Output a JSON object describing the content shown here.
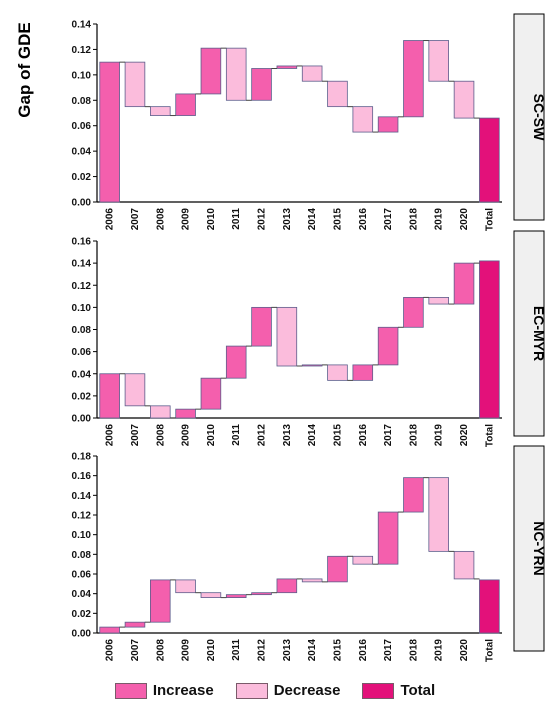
{
  "ylabel": "Gap of GDE",
  "colors": {
    "increase": "#f45fad",
    "decrease": "#fbbcdc",
    "total": "#e3117a",
    "edge": "#5d5e8c",
    "connector": "#444444",
    "strip_bg": "#f0f0f0"
  },
  "legend": [
    {
      "key": "increase",
      "label": "Increase"
    },
    {
      "key": "decrease",
      "label": "Decrease"
    },
    {
      "key": "total",
      "label": "Total"
    }
  ],
  "chart_data": [
    {
      "type": "waterfall",
      "panel": "SC-SW",
      "categories": [
        "2006",
        "2007",
        "2008",
        "2009",
        "2010",
        "2011",
        "2012",
        "2013",
        "2014",
        "2015",
        "2016",
        "2017",
        "2018",
        "2019",
        "2020",
        "Total"
      ],
      "steps": [
        0.11,
        -0.035,
        -0.007,
        0.017,
        0.036,
        -0.041,
        0.025,
        0.002,
        -0.012,
        -0.02,
        -0.02,
        0.012,
        0.06,
        -0.032,
        -0.029
      ],
      "total": 0.066,
      "ylim": [
        0,
        0.14
      ],
      "yticks": [
        "0.00",
        "0.02",
        "0.04",
        "0.06",
        "0.08",
        "0.10",
        "0.12",
        "0.14"
      ],
      "yticks_values": [
        0,
        0.02,
        0.04,
        0.06,
        0.08,
        0.1,
        0.12,
        0.14
      ]
    },
    {
      "type": "waterfall",
      "panel": "EC-MYR",
      "categories": [
        "2006",
        "2007",
        "2008",
        "2009",
        "2010",
        "2011",
        "2012",
        "2013",
        "2014",
        "2015",
        "2016",
        "2017",
        "2018",
        "2019",
        "2020",
        "Total"
      ],
      "steps": [
        0.04,
        -0.029,
        -0.011,
        0.008,
        0.028,
        0.029,
        0.035,
        -0.053,
        0.001,
        -0.014,
        0.014,
        0.034,
        0.027,
        -0.006,
        0.037
      ],
      "total": 0.142,
      "ylim": [
        0,
        0.16
      ],
      "yticks": [
        "0.00",
        "0.02",
        "0.04",
        "0.06",
        "0.08",
        "0.10",
        "0.12",
        "0.14",
        "0.16"
      ],
      "yticks_values": [
        0,
        0.02,
        0.04,
        0.06,
        0.08,
        0.1,
        0.12,
        0.14,
        0.16
      ]
    },
    {
      "type": "waterfall",
      "panel": "NC-YRN",
      "categories": [
        "2006",
        "2007",
        "2008",
        "2009",
        "2010",
        "2011",
        "2012",
        "2013",
        "2014",
        "2015",
        "2016",
        "2017",
        "2018",
        "2019",
        "2020",
        "Total"
      ],
      "steps": [
        0.006,
        0.005,
        0.043,
        -0.013,
        -0.005,
        0.003,
        0.002,
        0.014,
        -0.003,
        0.026,
        -0.008,
        0.053,
        0.035,
        -0.075,
        -0.028
      ],
      "total": 0.054,
      "ylim": [
        0,
        0.18
      ],
      "yticks": [
        "0.00",
        "0.02",
        "0.04",
        "0.06",
        "0.08",
        "0.10",
        "0.12",
        "0.14",
        "0.16",
        "0.18"
      ],
      "yticks_values": [
        0,
        0.02,
        0.04,
        0.06,
        0.08,
        0.1,
        0.12,
        0.14,
        0.16,
        0.18
      ]
    }
  ]
}
